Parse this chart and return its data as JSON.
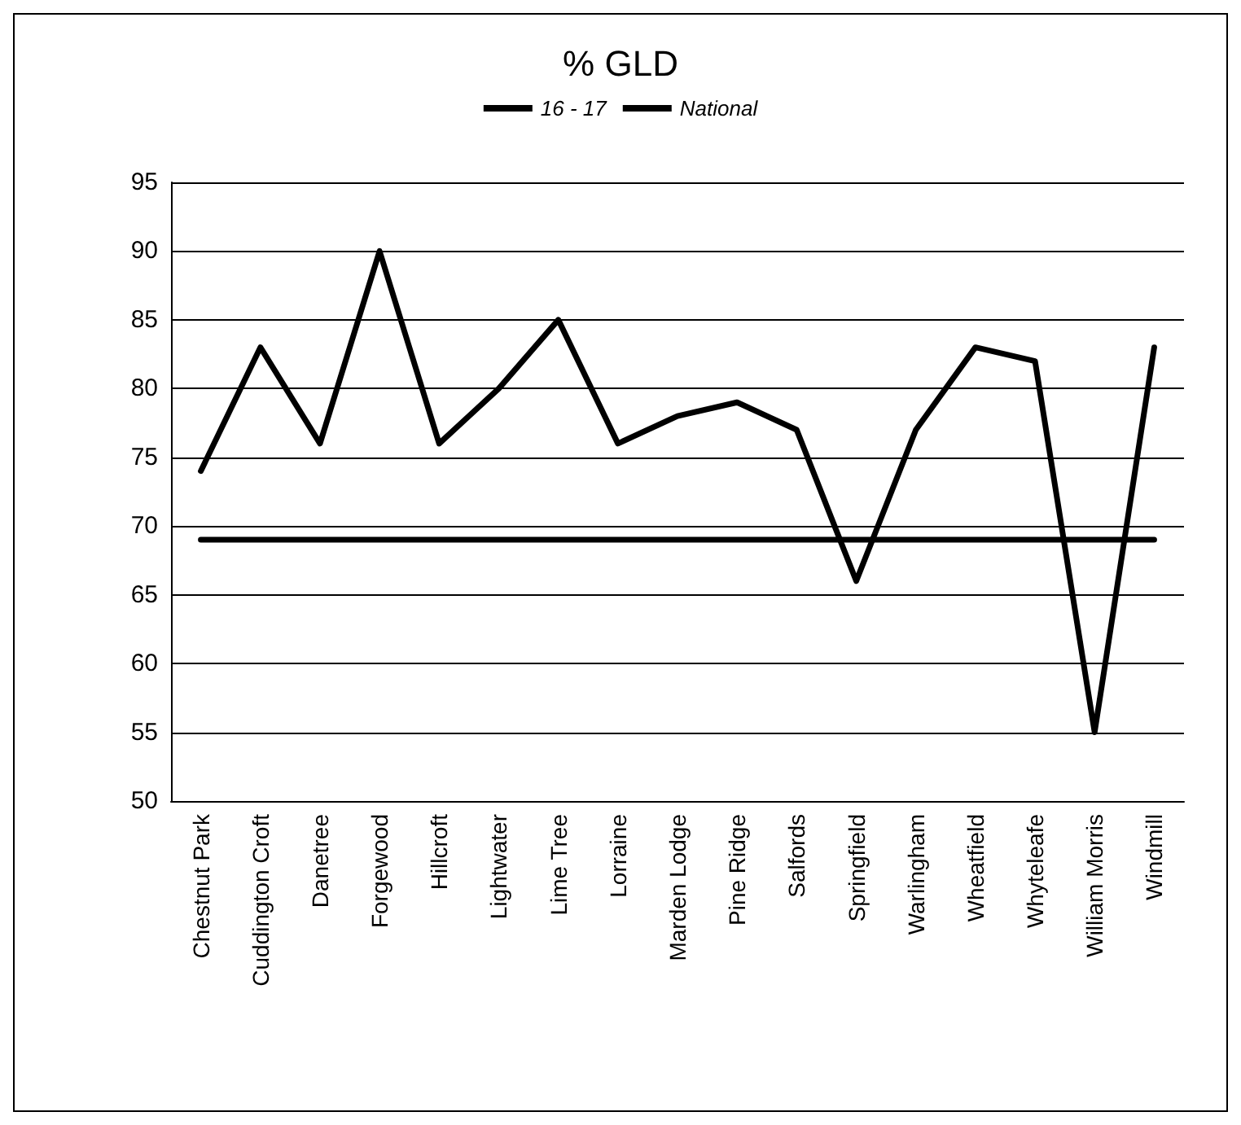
{
  "chart_data": {
    "type": "line",
    "title": "% GLD",
    "categories": [
      "Chestnut Park",
      "Cuddington Croft",
      "Danetree",
      "Forgewood",
      "Hillcroft",
      "Lightwater",
      "Lime Tree",
      "Lorraine",
      "Marden Lodge",
      "Pine Ridge",
      "Salfords",
      "Springfield",
      "Warlingham",
      "Wheatfield",
      "Whyteleafe",
      "William Morris",
      "Windmill"
    ],
    "series": [
      {
        "name": "16 - 17",
        "color": "#000000",
        "values": [
          74,
          83,
          76,
          90,
          76,
          80,
          85,
          76,
          78,
          79,
          77,
          66,
          77,
          83,
          82,
          55,
          83
        ]
      },
      {
        "name": "National",
        "color": "#000000",
        "values": [
          69,
          69,
          69,
          69,
          69,
          69,
          69,
          69,
          69,
          69,
          69,
          69,
          69,
          69,
          69,
          69,
          69
        ]
      }
    ],
    "ylim": [
      50,
      95
    ],
    "yticks": [
      50,
      55,
      60,
      65,
      70,
      75,
      80,
      85,
      90,
      95
    ],
    "grid": "y",
    "legend": "top",
    "marker": "none",
    "line_style": "solid"
  }
}
